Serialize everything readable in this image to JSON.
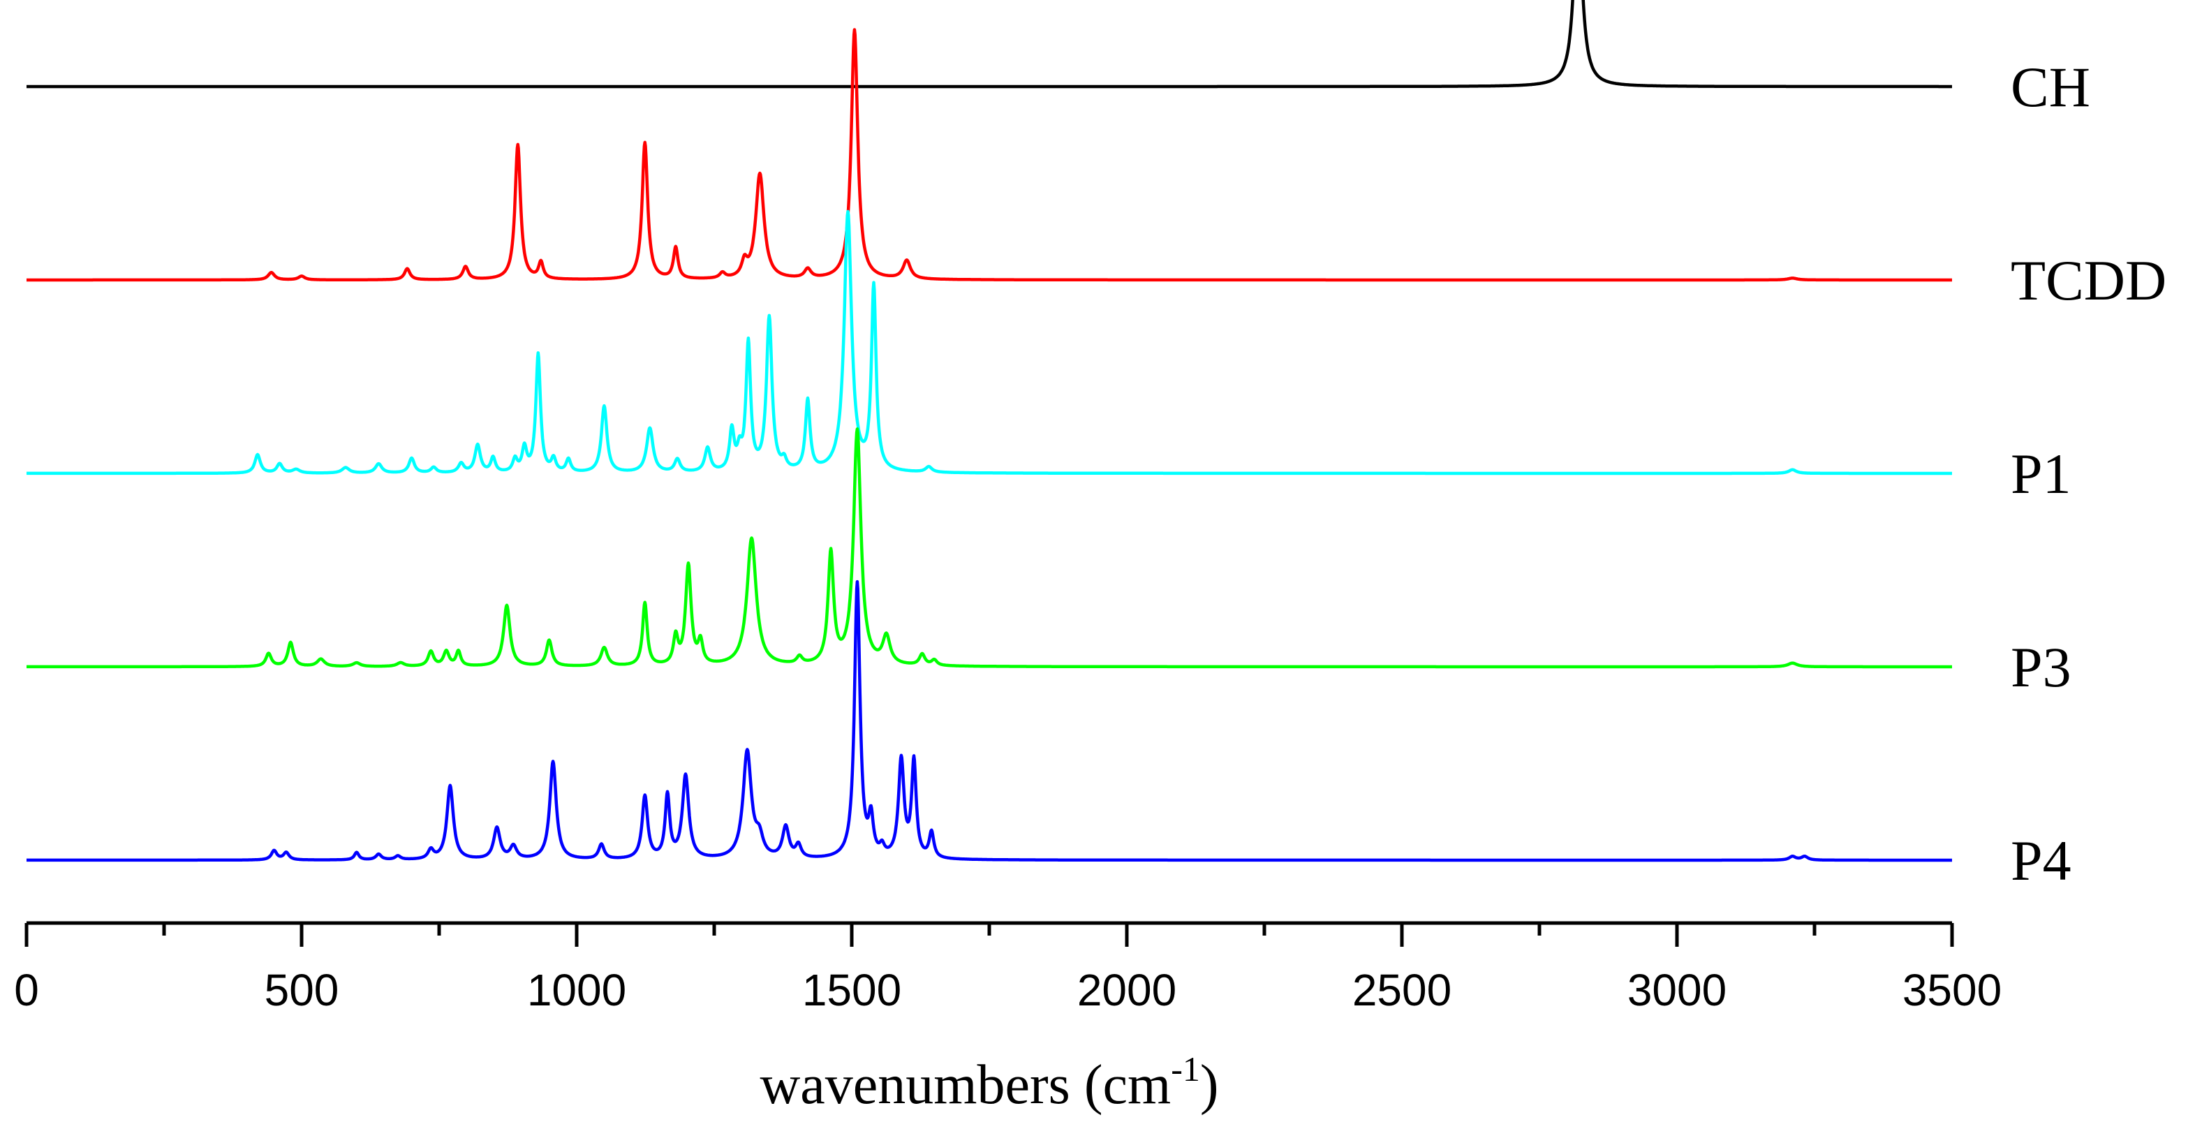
{
  "chart_data": {
    "type": "line",
    "title": "",
    "xlabel": "wavenumbers (cm-1)",
    "xlabel_main": "wavenumbers (cm",
    "xlabel_sup": "-1",
    "xlabel_tail": ")",
    "ylabel": "",
    "xlim": [
      0,
      3500
    ],
    "x_ticks": [
      0,
      500,
      1000,
      1500,
      2000,
      2500,
      3000,
      3500
    ],
    "x_tick_labels": [
      "0",
      "500",
      "1000",
      "1500",
      "2000",
      "2500",
      "3000",
      "3500"
    ],
    "grid": false,
    "legend": "labels placed at right end of each trace",
    "series": [
      {
        "name": "CH",
        "color": "#000000",
        "baseline_offset": 4.0,
        "peaks": [
          [
            2820,
            1.0,
            9
          ]
        ]
      },
      {
        "name": "TCDD",
        "color": "#ff0000",
        "baseline_offset": 3.0,
        "peaks": [
          [
            445,
            0.04,
            7
          ],
          [
            500,
            0.02,
            7
          ],
          [
            692,
            0.06,
            6
          ],
          [
            798,
            0.07,
            6
          ],
          [
            893,
            0.73,
            6
          ],
          [
            935,
            0.09,
            5
          ],
          [
            1124,
            0.74,
            6
          ],
          [
            1180,
            0.17,
            5
          ],
          [
            1265,
            0.03,
            6
          ],
          [
            1305,
            0.08,
            6
          ],
          [
            1333,
            0.57,
            9
          ],
          [
            1420,
            0.05,
            7
          ],
          [
            1505,
            1.35,
            7
          ],
          [
            1600,
            0.1,
            8
          ],
          [
            3210,
            0.01,
            10
          ]
        ]
      },
      {
        "name": "P1",
        "color": "#00ffff",
        "baseline_offset": 2.0,
        "peaks": [
          [
            420,
            0.1,
            6
          ],
          [
            460,
            0.05,
            6
          ],
          [
            490,
            0.02,
            8
          ],
          [
            580,
            0.03,
            8
          ],
          [
            640,
            0.05,
            7
          ],
          [
            700,
            0.08,
            6
          ],
          [
            740,
            0.03,
            6
          ],
          [
            790,
            0.05,
            6
          ],
          [
            820,
            0.15,
            6
          ],
          [
            848,
            0.08,
            5
          ],
          [
            888,
            0.07,
            5
          ],
          [
            905,
            0.13,
            5
          ],
          [
            930,
            0.64,
            5
          ],
          [
            958,
            0.07,
            5
          ],
          [
            985,
            0.07,
            5
          ],
          [
            1050,
            0.36,
            6
          ],
          [
            1133,
            0.24,
            7
          ],
          [
            1183,
            0.07,
            6
          ],
          [
            1238,
            0.13,
            6
          ],
          [
            1282,
            0.22,
            5
          ],
          [
            1296,
            0.1,
            5
          ],
          [
            1312,
            0.69,
            5
          ],
          [
            1350,
            0.83,
            6
          ],
          [
            1377,
            0.05,
            5
          ],
          [
            1420,
            0.38,
            5
          ],
          [
            1493,
            1.4,
            8
          ],
          [
            1540,
            0.99,
            5
          ],
          [
            1640,
            0.03,
            7
          ],
          [
            3210,
            0.02,
            8
          ]
        ]
      },
      {
        "name": "P3",
        "color": "#00ff00",
        "baseline_offset": 1.0,
        "peaks": [
          [
            440,
            0.07,
            6
          ],
          [
            480,
            0.13,
            6
          ],
          [
            535,
            0.04,
            8
          ],
          [
            600,
            0.02,
            8
          ],
          [
            680,
            0.02,
            8
          ],
          [
            735,
            0.08,
            6
          ],
          [
            763,
            0.08,
            6
          ],
          [
            785,
            0.08,
            5
          ],
          [
            873,
            0.33,
            7
          ],
          [
            950,
            0.14,
            6
          ],
          [
            1050,
            0.1,
            7
          ],
          [
            1124,
            0.34,
            5
          ],
          [
            1180,
            0.15,
            5
          ],
          [
            1203,
            0.54,
            6
          ],
          [
            1225,
            0.12,
            5
          ],
          [
            1318,
            0.69,
            10
          ],
          [
            1405,
            0.04,
            6
          ],
          [
            1462,
            0.6,
            6
          ],
          [
            1510,
            1.27,
            8
          ],
          [
            1563,
            0.15,
            8
          ],
          [
            1628,
            0.06,
            6
          ],
          [
            1650,
            0.03,
            6
          ],
          [
            3210,
            0.02,
            10
          ]
        ]
      },
      {
        "name": "P4",
        "color": "#0000ff",
        "baseline_offset": 0.0,
        "peaks": [
          [
            450,
            0.05,
            6
          ],
          [
            472,
            0.04,
            6
          ],
          [
            600,
            0.04,
            5
          ],
          [
            640,
            0.03,
            6
          ],
          [
            675,
            0.02,
            6
          ],
          [
            735,
            0.05,
            6
          ],
          [
            770,
            0.4,
            7
          ],
          [
            855,
            0.17,
            7
          ],
          [
            885,
            0.07,
            7
          ],
          [
            957,
            0.53,
            7
          ],
          [
            1045,
            0.08,
            6
          ],
          [
            1124,
            0.34,
            6
          ],
          [
            1165,
            0.34,
            5
          ],
          [
            1198,
            0.45,
            7
          ],
          [
            1310,
            0.58,
            9
          ],
          [
            1332,
            0.1,
            8
          ],
          [
            1380,
            0.17,
            7
          ],
          [
            1403,
            0.07,
            6
          ],
          [
            1510,
            1.49,
            6
          ],
          [
            1535,
            0.2,
            5
          ],
          [
            1555,
            0.05,
            5
          ],
          [
            1590,
            0.53,
            6
          ],
          [
            1613,
            0.52,
            5
          ],
          [
            1645,
            0.14,
            5
          ],
          [
            3210,
            0.02,
            7
          ],
          [
            3232,
            0.02,
            7
          ]
        ]
      }
    ]
  }
}
